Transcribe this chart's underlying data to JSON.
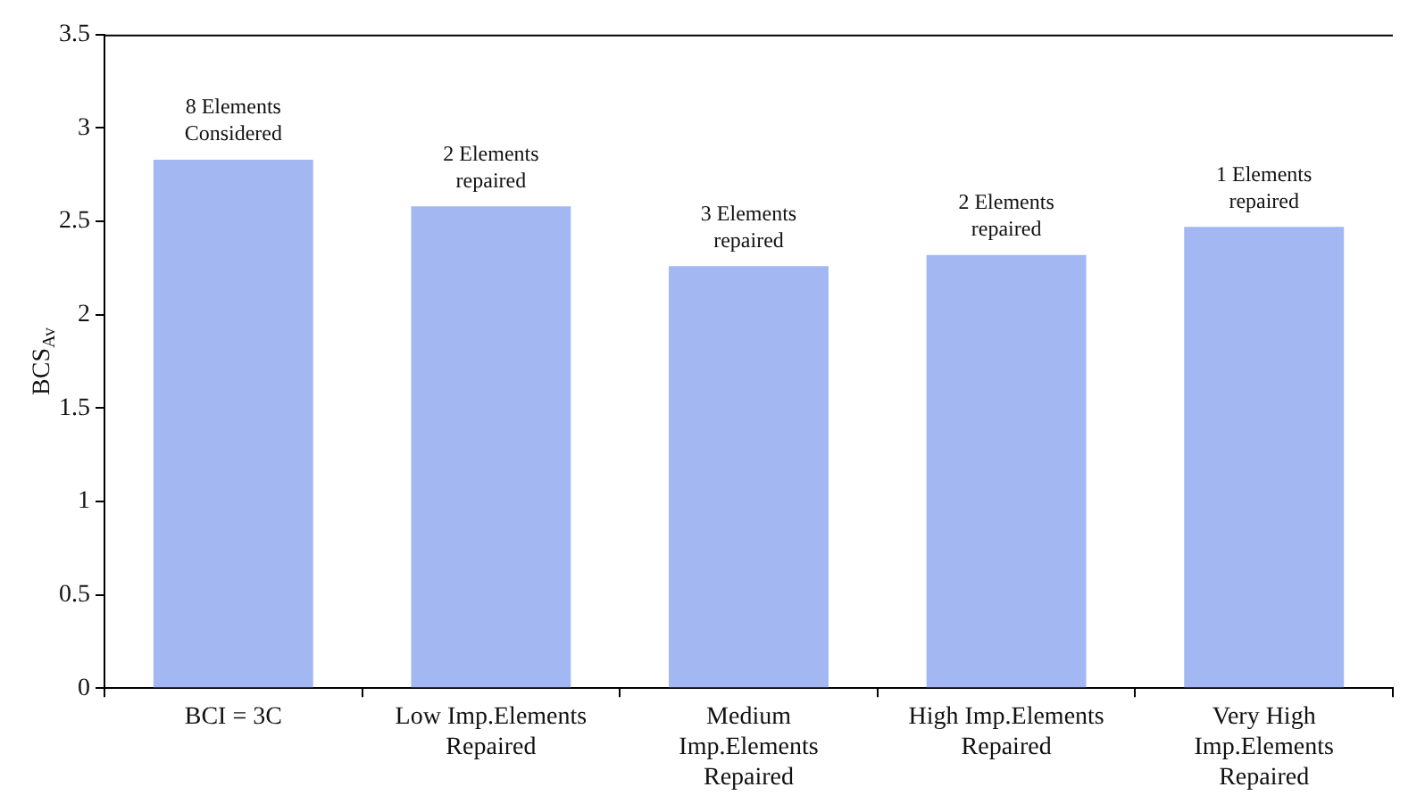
{
  "chart_data": {
    "type": "bar",
    "ylabel": "BCS$_{Av}$",
    "categories": [
      "BCI = 3C",
      "Low Imp.Elements Repaired",
      "Medium Imp.Elements Repaired",
      "High Imp.Elements Repaired",
      "Very High Imp.Elements Repaired"
    ],
    "values": [
      2.83,
      2.58,
      2.26,
      2.32,
      2.47
    ],
    "color": "#a3b8f2",
    "ylim": [
      0,
      3.5
    ],
    "yticks": [
      0,
      0.5,
      1,
      1.5,
      2,
      2.5,
      3,
      3.5
    ],
    "grid": false,
    "legend": false,
    "annotations": [
      {
        "text": "8 Elements Considered",
        "x": "BCI = 3C",
        "y": 2.83
      },
      {
        "text": "2 Elements repaired",
        "x": "Low Imp.Elements Repaired",
        "y": 2.58
      },
      {
        "text": "3 Elements repaired",
        "x": "Medium Imp.Elements Repaired",
        "y": 2.26
      },
      {
        "text": "2 Elements repaired",
        "x": "High Imp.Elements Repaired",
        "y": 2.32
      },
      {
        "text": "1 Elements repaired",
        "x": "Very High Imp.Elements Repaired",
        "y": 2.47
      }
    ]
  }
}
